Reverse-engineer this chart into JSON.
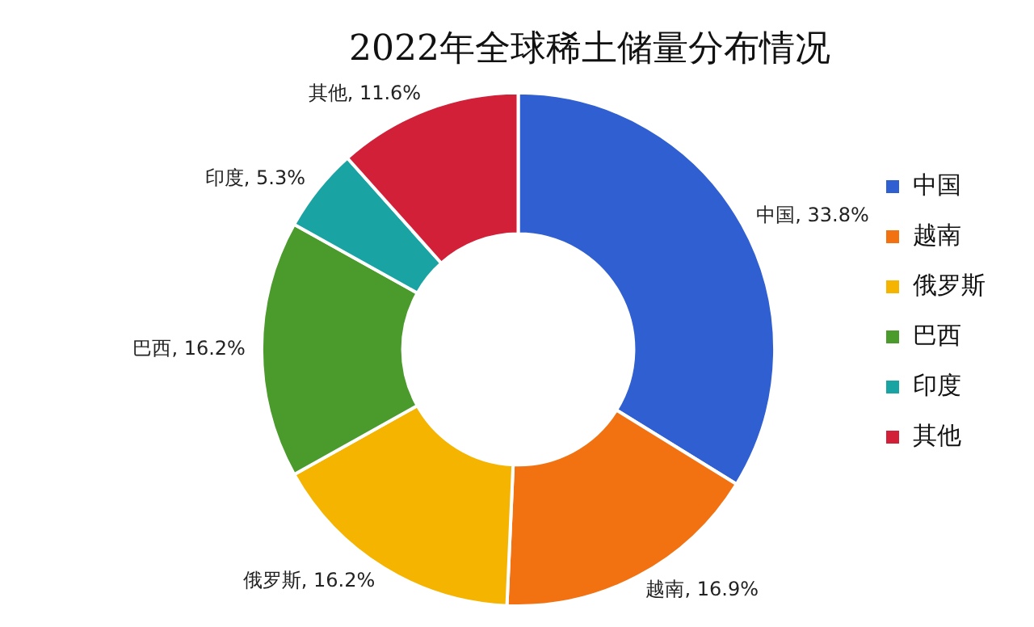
{
  "chart_data": {
    "type": "donut",
    "title": "2022年全球稀土储量分布情况",
    "categories": [
      "中国",
      "越南",
      "俄罗斯",
      "巴西",
      "印度",
      "其他"
    ],
    "values": [
      33.8,
      16.9,
      16.2,
      16.2,
      5.3,
      11.6
    ],
    "colors": [
      "#2f5fd0",
      "#f27212",
      "#f5b400",
      "#4b9a2c",
      "#1aa3a3",
      "#d12038"
    ],
    "value_labels": [
      "中国, 33.8%",
      "越南, 16.9%",
      "俄罗斯, 16.2%",
      "巴西, 16.2%",
      "印度, 5.3%",
      "其他, 11.6%"
    ],
    "legend": "right"
  }
}
